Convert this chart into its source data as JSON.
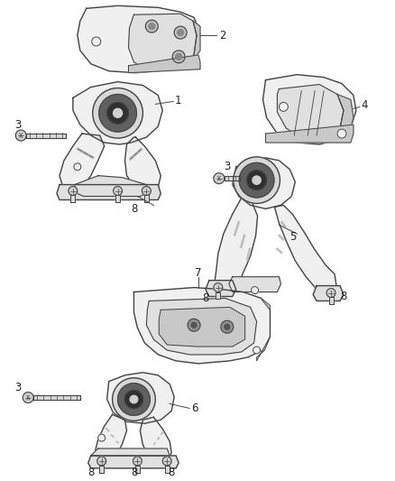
{
  "bg_color": "#ffffff",
  "line_color": "#444444",
  "label_color": "#222222",
  "fill_light": "#f0f0f0",
  "fill_mid": "#e0e0e0",
  "fill_dark": "#c8c8c8",
  "fill_rubber": "#a0a0a0",
  "fill_inner": "#888888"
}
